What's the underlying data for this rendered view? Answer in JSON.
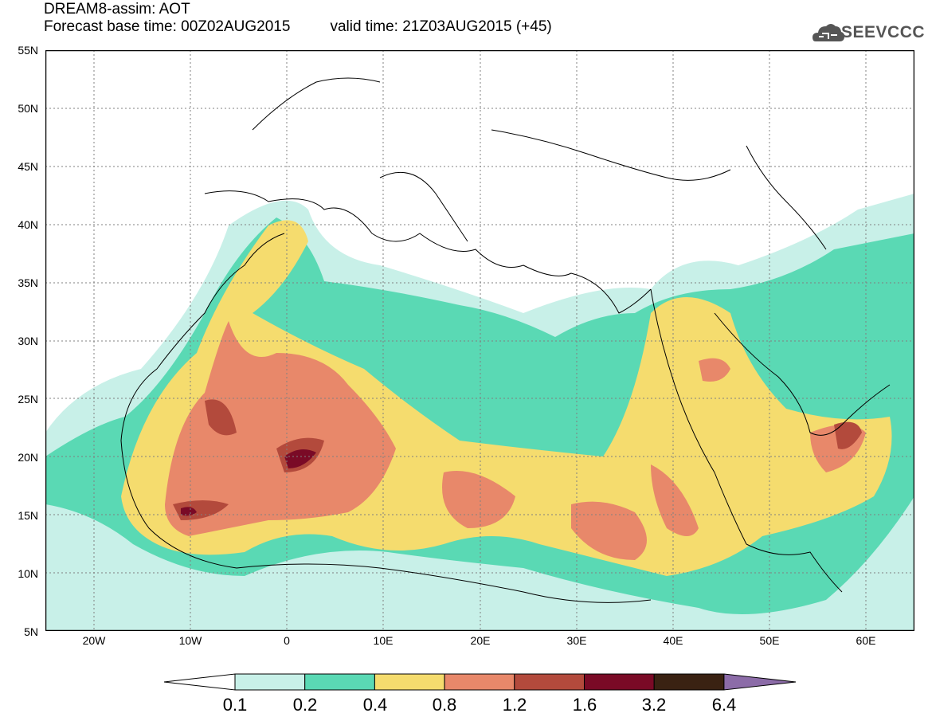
{
  "header": {
    "title": "DREAM8-assim: AOT",
    "base_time": "Forecast base time: 00Z02AUG2015",
    "valid_time": "valid time: 21Z03AUG2015 (+45)"
  },
  "logo": {
    "text": "SEEVCCC",
    "icon": "cloud-icon"
  },
  "map": {
    "variable": "AOT",
    "lat_labels": [
      "55N",
      "50N",
      "45N",
      "40N",
      "35N",
      "30N",
      "25N",
      "20N",
      "15N",
      "10N",
      "5N"
    ],
    "lon_labels": [
      "20W",
      "10W",
      "0",
      "10E",
      "20E",
      "30E",
      "40E",
      "50E",
      "60E"
    ],
    "lat_range": [
      5,
      55
    ],
    "lon_range": [
      -25,
      65
    ]
  },
  "legend": {
    "thresholds": [
      "0.1",
      "0.2",
      "0.4",
      "0.8",
      "1.2",
      "1.6",
      "3.2",
      "6.4"
    ],
    "colors": [
      "#c8f0e8",
      "#5ad9b4",
      "#f5dc6e",
      "#e8886a",
      "#b34a3c",
      "#7a0a26",
      "#3a2212",
      "#8c6ca8"
    ]
  }
}
